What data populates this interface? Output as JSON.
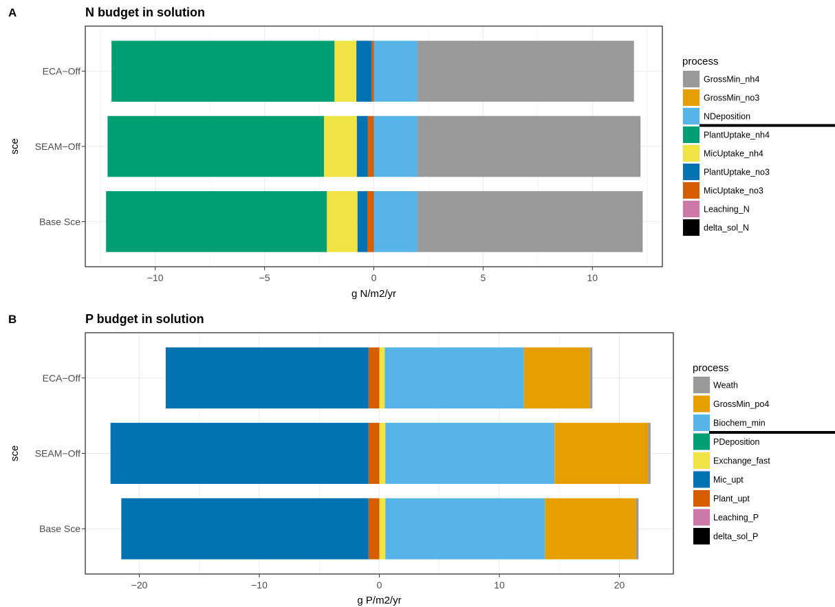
{
  "chart_data": [
    {
      "type": "bar",
      "orientation": "horizontal",
      "stacked": "diverging",
      "panel": "A",
      "title": "N budget in solution",
      "xlabel": "g N/m2/yr",
      "ylabel": "sce",
      "xlim": [
        -13.2,
        13.2
      ],
      "xticks": [
        -10,
        -5,
        0,
        5,
        10
      ],
      "xtick_labels": [
        "−10",
        "−5",
        "0",
        "5",
        "10"
      ],
      "categories": [
        "ECA−Off",
        "SEAM−Off",
        "Base Sce"
      ],
      "legend_title": "process",
      "legend_position": "right",
      "grid": true,
      "series": [
        {
          "name": "GrossMin_nh4",
          "color": "#999999",
          "values": [
            9.9,
            10.2,
            10.3
          ]
        },
        {
          "name": "GrossMin_no3",
          "color": "#E69F00",
          "values": [
            0,
            0,
            0
          ]
        },
        {
          "name": "NDeposition",
          "color": "#56B4E9",
          "values": [
            2.0,
            2.0,
            2.0
          ]
        },
        {
          "name": "PlantUptake_nh4",
          "color": "#009E73",
          "values": [
            -10.2,
            -9.9,
            -10.1
          ]
        },
        {
          "name": "MicUptake_nh4",
          "color": "#F0E442",
          "values": [
            -1.0,
            -1.5,
            -1.4
          ]
        },
        {
          "name": "PlantUptake_no3",
          "color": "#0072B2",
          "values": [
            -0.7,
            -0.5,
            -0.45
          ]
        },
        {
          "name": "MicUptake_no3",
          "color": "#D55E00",
          "values": [
            -0.1,
            -0.28,
            -0.3
          ]
        },
        {
          "name": "Leaching_N",
          "color": "#CC79A7",
          "values": [
            0,
            0,
            0
          ]
        },
        {
          "name": "delta_sol_N",
          "color": "#000000",
          "values": [
            0,
            0,
            0
          ]
        }
      ]
    },
    {
      "type": "bar",
      "orientation": "horizontal",
      "stacked": "diverging",
      "panel": "B",
      "title": "P budget in solution",
      "xlabel": "g P/m2/yr",
      "ylabel": "sce",
      "xlim": [
        -24.5,
        24.5
      ],
      "xticks": [
        -20,
        -10,
        0,
        10,
        20
      ],
      "xtick_labels": [
        "−20",
        "−10",
        "0",
        "10",
        "20"
      ],
      "categories": [
        "ECA−Off",
        "SEAM−Off",
        "Base Sce"
      ],
      "legend_title": "process",
      "legend_position": "right",
      "grid": true,
      "series": [
        {
          "name": "Weath",
          "color": "#999999",
          "values": [
            0.2,
            0.2,
            0.2
          ]
        },
        {
          "name": "GrossMin_po4",
          "color": "#E69F00",
          "values": [
            5.5,
            7.8,
            7.6
          ]
        },
        {
          "name": "Biochem_min",
          "color": "#56B4E9",
          "values": [
            11.6,
            14.1,
            13.3
          ]
        },
        {
          "name": "PDeposition",
          "color": "#009E73",
          "values": [
            0,
            0,
            0
          ]
        },
        {
          "name": "Exchange_fast",
          "color": "#F0E442",
          "values": [
            0.45,
            0.5,
            0.5
          ]
        },
        {
          "name": "Mic_upt",
          "color": "#0072B2",
          "values": [
            -16.9,
            -21.5,
            -20.6
          ]
        },
        {
          "name": "Plant_upt",
          "color": "#D55E00",
          "values": [
            -0.9,
            -0.9,
            -0.9
          ]
        },
        {
          "name": "Leaching_P",
          "color": "#CC79A7",
          "values": [
            0,
            0,
            0
          ]
        },
        {
          "name": "delta_sol_P",
          "color": "#000000",
          "values": [
            0,
            0,
            0
          ]
        }
      ]
    }
  ],
  "panels": [
    {
      "tag": "A"
    },
    {
      "tag": "B"
    }
  ]
}
